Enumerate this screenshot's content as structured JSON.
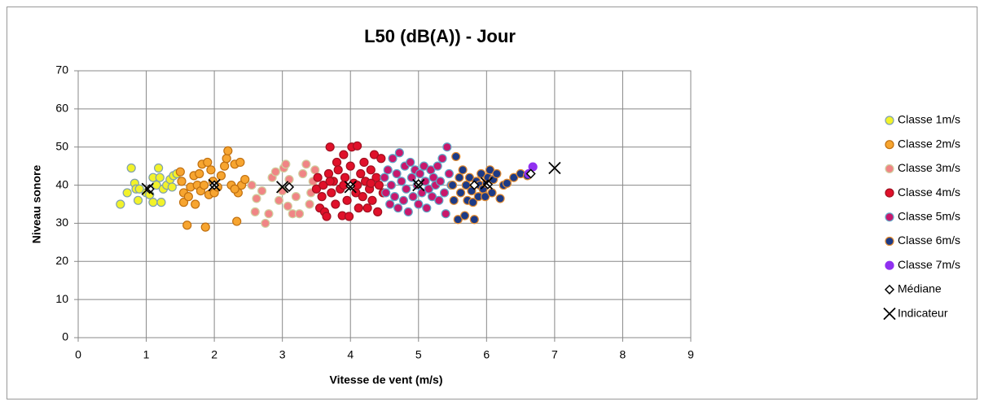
{
  "chart_data": {
    "type": "scatter",
    "title": "L50 (dB(A)) - Jour",
    "xlabel": "Vitesse de vent (m/s)",
    "ylabel": "Niveau sonore",
    "xlim": [
      0,
      9
    ],
    "xticks": [
      0,
      1,
      2,
      3,
      4,
      5,
      6,
      7,
      8,
      9
    ],
    "ylim": [
      0,
      70
    ],
    "yticks": [
      0,
      10,
      20,
      30,
      40,
      50,
      60,
      70
    ],
    "grid": true,
    "legend": "right",
    "series": [
      {
        "name": "Classe 1m/s",
        "color": "#f2f22a",
        "edge": "#7fa0b0",
        "marker": "circle",
        "x": [
          0.62,
          0.72,
          0.78,
          0.83,
          0.85,
          0.88,
          0.9,
          1.0,
          1.05,
          1.1,
          1.1,
          1.15,
          1.18,
          1.2,
          1.22,
          1.25,
          1.3,
          1.35,
          1.4,
          1.45,
          1.38
        ],
        "y": [
          35,
          38,
          44.5,
          40.5,
          39,
          36,
          39,
          38,
          37.5,
          35.5,
          42,
          40,
          44.5,
          42,
          35.5,
          39,
          40,
          41.5,
          42.5,
          43,
          39.5
        ]
      },
      {
        "name": "Classe 2m/s",
        "color": "#f7a530",
        "edge": "#c07010",
        "marker": "circle",
        "x": [
          1.5,
          1.52,
          1.55,
          1.55,
          1.6,
          1.62,
          1.65,
          1.7,
          1.72,
          1.75,
          1.78,
          1.8,
          1.82,
          1.85,
          1.87,
          1.9,
          1.92,
          1.95,
          1.98,
          2.0,
          2.05,
          2.1,
          2.15,
          2.18,
          2.2,
          2.25,
          2.3,
          2.33,
          2.35,
          2.38,
          2.4,
          2.45,
          2.3
        ],
        "y": [
          43.5,
          41,
          38,
          35.5,
          29.5,
          37,
          39.5,
          42.5,
          35,
          40,
          43,
          38.5,
          45.5,
          40,
          29,
          46,
          37.5,
          44,
          41,
          38,
          39.5,
          42.5,
          45,
          47,
          49,
          40,
          45.5,
          30.5,
          38,
          46,
          40,
          41.5,
          39
        ]
      },
      {
        "name": "Classe 3m/s",
        "color": "#f08585",
        "edge": "#d0d0a0",
        "marker": "circle",
        "x": [
          2.55,
          2.6,
          2.62,
          2.7,
          2.75,
          2.8,
          2.85,
          2.9,
          2.95,
          3.0,
          3.02,
          3.05,
          3.08,
          3.1,
          3.15,
          3.2,
          3.25,
          3.3,
          3.35,
          3.4,
          3.45,
          3.48,
          3.42
        ],
        "y": [
          40,
          33,
          36.5,
          38.5,
          30,
          32.5,
          42,
          43.5,
          36,
          38.5,
          44.5,
          45.5,
          34.5,
          41.5,
          32.5,
          37,
          32.5,
          43,
          45.5,
          35,
          41,
          44,
          38
        ]
      },
      {
        "name": "Classe 4m/s",
        "color": "#e0102a",
        "edge": "#a01020",
        "marker": "circle",
        "x": [
          3.5,
          3.52,
          3.55,
          3.58,
          3.6,
          3.62,
          3.65,
          3.68,
          3.7,
          3.72,
          3.75,
          3.78,
          3.8,
          3.82,
          3.85,
          3.88,
          3.9,
          3.92,
          3.95,
          3.98,
          4.0,
          4.02,
          4.05,
          4.08,
          4.1,
          4.12,
          4.15,
          4.18,
          4.2,
          4.22,
          4.25,
          4.28,
          4.3,
          4.32,
          4.35,
          4.38,
          4.4,
          4.42,
          4.45,
          4.48,
          3.7,
          3.9,
          4.1,
          4.3
        ],
        "y": [
          39,
          42,
          34,
          37,
          40,
          33,
          31.8,
          43,
          50,
          38,
          41,
          35,
          46,
          44,
          39,
          32,
          48,
          42,
          36,
          31.8,
          45,
          50,
          40.5,
          38,
          50.3,
          34,
          43,
          37,
          46,
          41,
          34,
          39,
          44,
          36,
          48,
          42,
          33,
          40,
          47,
          38,
          41,
          40,
          40,
          40.5
        ]
      },
      {
        "name": "Classe 5m/s",
        "color": "#c8186c",
        "edge": "#5fa8c8",
        "marker": "circle",
        "x": [
          4.5,
          4.52,
          4.55,
          4.58,
          4.6,
          4.62,
          4.65,
          4.68,
          4.7,
          4.72,
          4.75,
          4.78,
          4.8,
          4.82,
          4.85,
          4.88,
          4.9,
          4.92,
          4.95,
          4.98,
          5.0,
          5.02,
          5.05,
          5.08,
          5.1,
          5.12,
          5.15,
          5.18,
          5.2,
          5.22,
          5.25,
          5.28,
          5.3,
          5.32,
          5.35,
          5.38,
          5.4,
          5.42,
          5.45,
          5.48
        ],
        "y": [
          42,
          38,
          44,
          35,
          40,
          47,
          37,
          43,
          34,
          48.5,
          41,
          36,
          45,
          39,
          33,
          46,
          42,
          37,
          44,
          40,
          35,
          43,
          38,
          45,
          41,
          34,
          39,
          44,
          37,
          42,
          40,
          45,
          36,
          41,
          47,
          38,
          32.5,
          50,
          43,
          40
        ]
      },
      {
        "name": "Classe 6m/s",
        "color": "#1c3a86",
        "edge": "#e08a30",
        "marker": "circle",
        "x": [
          5.5,
          5.52,
          5.55,
          5.58,
          5.6,
          5.62,
          5.65,
          5.68,
          5.7,
          5.72,
          5.75,
          5.78,
          5.8,
          5.82,
          5.85,
          5.88,
          5.9,
          5.92,
          5.95,
          5.98,
          6.0,
          6.02,
          6.05,
          6.08,
          6.1,
          6.15,
          6.2,
          6.25,
          6.3,
          6.4,
          6.5,
          6.6
        ],
        "y": [
          40,
          36,
          47.5,
          31,
          42,
          38,
          44,
          32,
          40,
          36,
          42,
          38.5,
          35.5,
          31,
          41,
          37,
          40,
          43,
          39,
          37,
          40.5,
          42,
          44,
          38,
          41.5,
          43,
          36.5,
          40,
          40.5,
          42,
          43,
          42.5
        ]
      },
      {
        "name": "Classe 7m/s",
        "color": "#9030f0",
        "edge": "#9030f0",
        "marker": "circle",
        "x": [
          6.62,
          6.68
        ],
        "y": [
          43,
          44.8
        ]
      },
      {
        "name": "Médiane",
        "color": "#ffffff",
        "edge": "#000000",
        "marker": "diamond",
        "x": [
          1.05,
          2.0,
          3.1,
          4.0,
          5.0,
          5.82,
          6.02,
          6.65
        ],
        "y": [
          39,
          40,
          39.5,
          39.8,
          40.3,
          40,
          40.2,
          43
        ]
      },
      {
        "name": "Indicateur",
        "color": "#000000",
        "edge": "#000000",
        "marker": "cross",
        "x": [
          1.02,
          2.0,
          3.0,
          4.0,
          5.0,
          6.0,
          7.0
        ],
        "y": [
          39,
          40,
          39.5,
          39.5,
          40,
          40.5,
          44.5
        ]
      }
    ]
  }
}
